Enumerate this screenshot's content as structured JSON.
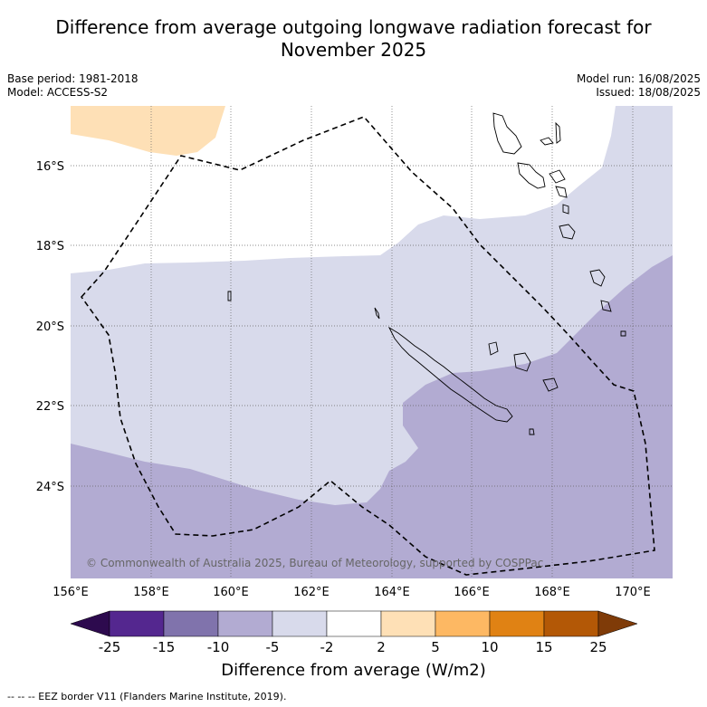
{
  "title_line1": "Difference from average outgoing longwave radiation forecast for",
  "title_line2": "November 2025",
  "meta": {
    "base_period": "Base period: 1981-2018",
    "model": "Model: ACCESS-S2",
    "model_run": "Model run: 16/08/2025",
    "issued": "Issued: 18/08/2025"
  },
  "map": {
    "copyright": "© Commonwealth of Australia 2025, Bureau of Meteorology, supported by COSPPac",
    "lon_labels": [
      "156°E",
      "158°E",
      "160°E",
      "162°E",
      "164°E",
      "166°E",
      "168°E",
      "170°E"
    ],
    "lat_labels": [
      "16°S",
      "18°S",
      "20°S",
      "22°S",
      "24°S"
    ],
    "lon_range": [
      156,
      171
    ],
    "lat_range": [
      -26.2,
      -14.7
    ]
  },
  "colorbar": {
    "title": "Difference from average (W/m2)",
    "ticks": [
      "-25",
      "-15",
      "-10",
      "-5",
      "-2",
      "2",
      "5",
      "10",
      "15",
      "25"
    ],
    "colors": [
      "#2d0a4e",
      "#54278f",
      "#8073ac",
      "#b2abd2",
      "#d8daeb",
      "#ffffff",
      "#fee0b6",
      "#fdb863",
      "#e08214",
      "#b35806",
      "#7f3b08"
    ]
  },
  "footnote": "--  --  -- EEZ border V11 (Flanders Marine Institute, 2019)."
}
